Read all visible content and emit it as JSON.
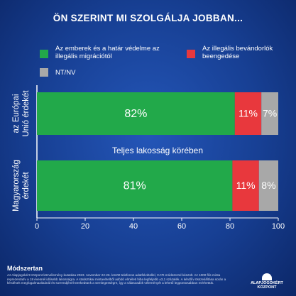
{
  "chart_data": {
    "type": "stacked-barh",
    "title": "ÖN SZERINT MI SZOLGÁLJA JOBBAN...",
    "categories": [
      "az Európai Unió érdekét",
      "Magyarország érdekét"
    ],
    "series": [
      {
        "name": "Az emberek és a határ védelme az illegális migrációtól",
        "color": "#22a94a",
        "values": [
          82,
          81
        ],
        "value_labels": [
          "82%",
          "81%"
        ]
      },
      {
        "name": "Az illegális bevándorlók beengedése",
        "color": "#e8383d",
        "values": [
          11,
          11
        ],
        "value_labels": [
          "11%",
          "11%"
        ]
      },
      {
        "name": "NT/NV",
        "color": "#a8a8a8",
        "values": [
          7,
          8
        ],
        "value_labels": [
          "7%",
          "8%"
        ]
      }
    ],
    "annotation": "Teljes lakosság körében",
    "xlim": [
      0,
      100
    ],
    "xticks": [
      0,
      20,
      40,
      60,
      80,
      100
    ],
    "legend": "top"
  },
  "footer": {
    "heading": "Módszertan",
    "text": "Az Alapjogokért Központ közvélemény-kutatása 2023. november 22-26. között telefonos adatfelvétellel, CATI-módszerrel készült. Az 1000 fős minta reprezentatív a 18 évesnél idősebb lakosságra. A statisztikai mintavételből adódó elméleti hiba legfeljebb ±3,1 százalék. A kérdőív összeállítása során a kérdések megfogalmazásánál és sorrendjénél törekedtünk a semlegességre, így a válaszadók véleményét a lehető legpontosabban mérhettük.",
    "logo": "ALAPJOGOKÉRT KÖZPONT"
  }
}
